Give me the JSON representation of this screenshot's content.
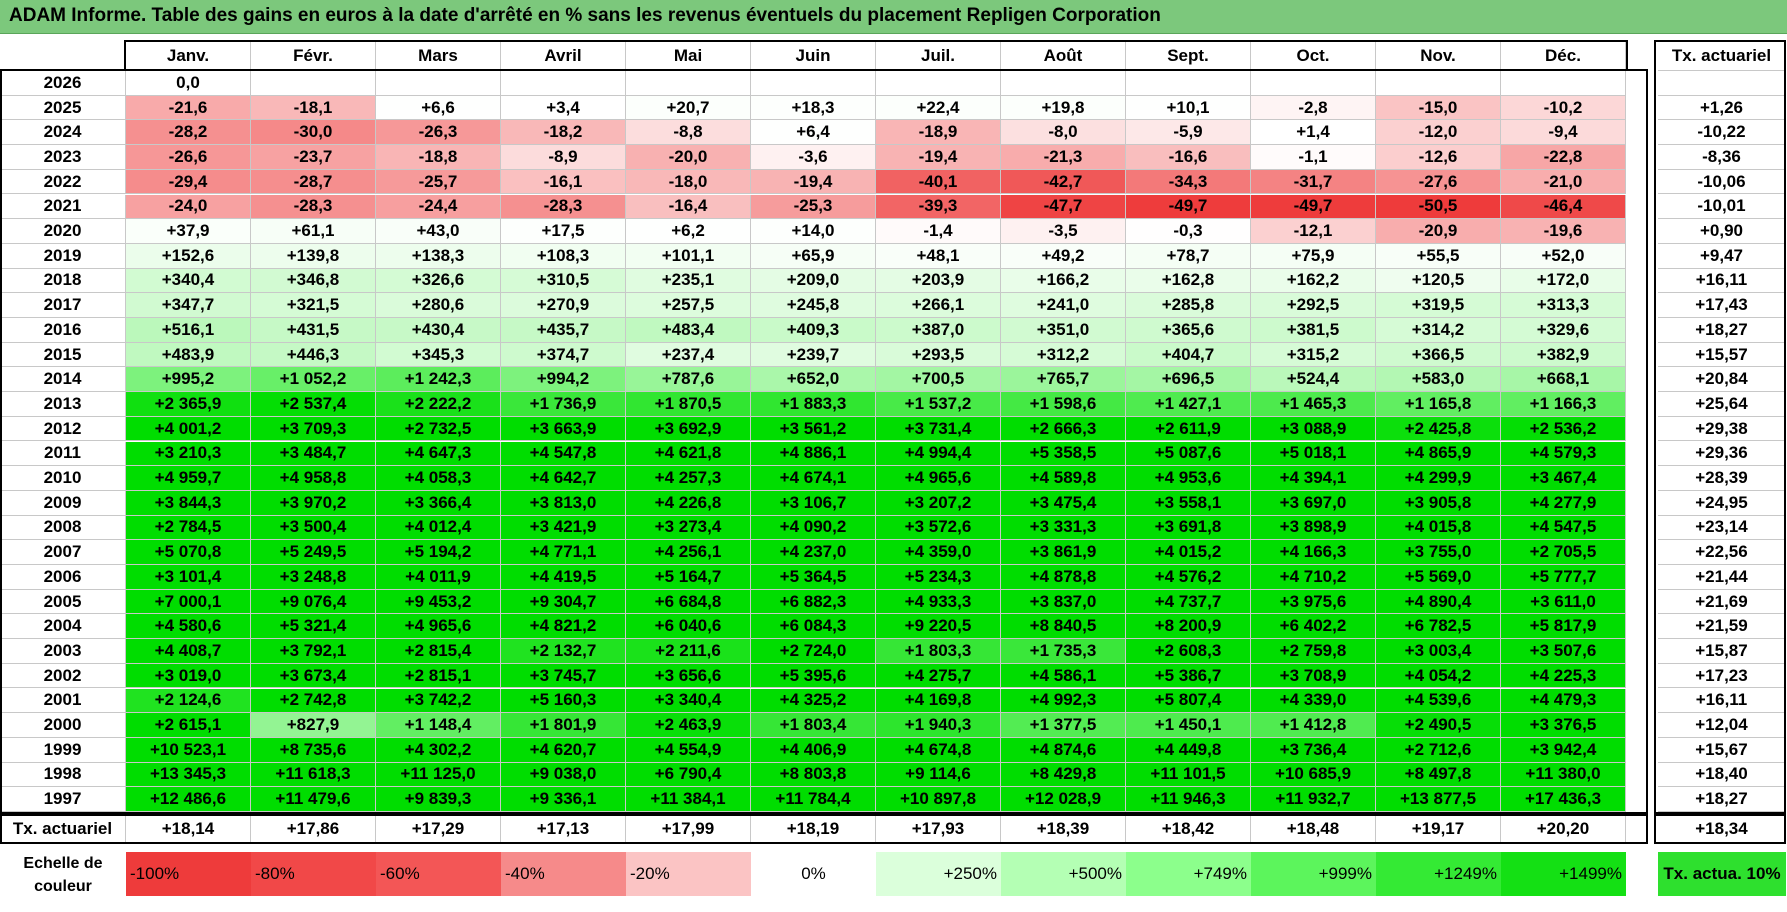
{
  "title": "ADAM Informe. Table des gains en euros à la date d'arrêté en % sans les revenus éventuels du placement Repligen Corporation",
  "chart_data": {
    "type": "heatmap",
    "months": [
      "Janv.",
      "Févr.",
      "Mars",
      "Avril",
      "Mai",
      "Juin",
      "Juil.",
      "Août",
      "Sept.",
      "Oct.",
      "Nov.",
      "Déc."
    ],
    "rate_header": "Tx. actuariel",
    "rows": [
      {
        "year": "2026",
        "values": [
          "0,0",
          "",
          "",
          "",
          "",
          "",
          "",
          "",
          "",
          "",
          "",
          ""
        ],
        "rate": ""
      },
      {
        "year": "2025",
        "values": [
          "-21,6",
          "-18,1",
          "+6,6",
          "+3,4",
          "+20,7",
          "+18,3",
          "+22,4",
          "+19,8",
          "+10,1",
          "-2,8",
          "-15,0",
          "-10,2"
        ],
        "rate": "+1,26"
      },
      {
        "year": "2024",
        "values": [
          "-28,2",
          "-30,0",
          "-26,3",
          "-18,2",
          "-8,8",
          "+6,4",
          "-18,9",
          "-8,0",
          "-5,9",
          "+1,4",
          "-12,0",
          "-9,4"
        ],
        "rate": "-10,22"
      },
      {
        "year": "2023",
        "values": [
          "-26,6",
          "-23,7",
          "-18,8",
          "-8,9",
          "-20,0",
          "-3,6",
          "-19,4",
          "-21,3",
          "-16,6",
          "-1,1",
          "-12,6",
          "-22,8"
        ],
        "rate": "-8,36"
      },
      {
        "year": "2022",
        "values": [
          "-29,4",
          "-28,7",
          "-25,7",
          "-16,1",
          "-18,0",
          "-19,4",
          "-40,1",
          "-42,7",
          "-34,3",
          "-31,7",
          "-27,6",
          "-21,0"
        ],
        "rate": "-10,06"
      },
      {
        "year": "2021",
        "values": [
          "-24,0",
          "-28,3",
          "-24,4",
          "-28,3",
          "-16,4",
          "-25,3",
          "-39,3",
          "-47,7",
          "-49,7",
          "-49,7",
          "-50,5",
          "-46,4"
        ],
        "rate": "-10,01"
      },
      {
        "year": "2020",
        "values": [
          "+37,9",
          "+61,1",
          "+43,0",
          "+17,5",
          "+6,2",
          "+14,0",
          "-1,4",
          "-3,5",
          "-0,3",
          "-12,1",
          "-20,9",
          "-19,6"
        ],
        "rate": "+0,90"
      },
      {
        "year": "2019",
        "values": [
          "+152,6",
          "+139,8",
          "+138,3",
          "+108,3",
          "+101,1",
          "+65,9",
          "+48,1",
          "+49,2",
          "+78,7",
          "+75,9",
          "+55,5",
          "+52,0"
        ],
        "rate": "+9,47"
      },
      {
        "year": "2018",
        "values": [
          "+340,4",
          "+346,8",
          "+326,6",
          "+310,5",
          "+235,1",
          "+209,0",
          "+203,9",
          "+166,2",
          "+162,8",
          "+162,2",
          "+120,5",
          "+172,0"
        ],
        "rate": "+16,11"
      },
      {
        "year": "2017",
        "values": [
          "+347,7",
          "+321,5",
          "+280,6",
          "+270,9",
          "+257,5",
          "+245,8",
          "+266,1",
          "+241,0",
          "+285,8",
          "+292,5",
          "+319,5",
          "+313,3"
        ],
        "rate": "+17,43"
      },
      {
        "year": "2016",
        "values": [
          "+516,1",
          "+431,5",
          "+430,4",
          "+435,7",
          "+483,4",
          "+409,3",
          "+387,0",
          "+351,0",
          "+365,6",
          "+381,5",
          "+314,2",
          "+329,6"
        ],
        "rate": "+18,27"
      },
      {
        "year": "2015",
        "values": [
          "+483,9",
          "+446,3",
          "+345,3",
          "+374,7",
          "+237,4",
          "+239,7",
          "+293,5",
          "+312,2",
          "+404,7",
          "+315,2",
          "+366,5",
          "+382,9"
        ],
        "rate": "+15,57"
      },
      {
        "year": "2014",
        "values": [
          "+995,2",
          "+1 052,2",
          "+1 242,3",
          "+994,2",
          "+787,6",
          "+652,0",
          "+700,5",
          "+765,7",
          "+696,5",
          "+524,4",
          "+583,0",
          "+668,1"
        ],
        "rate": "+20,84"
      },
      {
        "year": "2013",
        "values": [
          "+2 365,9",
          "+2 537,4",
          "+2 222,2",
          "+1 736,9",
          "+1 870,5",
          "+1 883,3",
          "+1 537,2",
          "+1 598,6",
          "+1 427,1",
          "+1 465,3",
          "+1 165,8",
          "+1 166,3"
        ],
        "rate": "+25,64"
      },
      {
        "year": "2012",
        "values": [
          "+4 001,2",
          "+3 709,3",
          "+2 732,5",
          "+3 663,9",
          "+3 692,9",
          "+3 561,2",
          "+3 731,4",
          "+2 666,3",
          "+2 611,9",
          "+3 088,9",
          "+2 425,8",
          "+2 536,2"
        ],
        "rate": "+29,38"
      },
      {
        "year": "2011",
        "values": [
          "+3 210,3",
          "+3 484,7",
          "+4 647,3",
          "+4 547,8",
          "+4 621,8",
          "+4 886,1",
          "+4 994,4",
          "+5 358,5",
          "+5 087,6",
          "+5 018,1",
          "+4 865,9",
          "+4 579,3"
        ],
        "rate": "+29,36"
      },
      {
        "year": "2010",
        "values": [
          "+4 959,7",
          "+4 958,8",
          "+4 058,3",
          "+4 642,7",
          "+4 257,3",
          "+4 674,1",
          "+4 965,6",
          "+4 589,8",
          "+4 953,6",
          "+4 394,1",
          "+4 299,9",
          "+3 467,4"
        ],
        "rate": "+28,39"
      },
      {
        "year": "2009",
        "values": [
          "+3 844,3",
          "+3 970,2",
          "+3 366,4",
          "+3 813,0",
          "+4 226,8",
          "+3 106,7",
          "+3 207,2",
          "+3 475,4",
          "+3 558,1",
          "+3 697,0",
          "+3 905,8",
          "+4 277,9"
        ],
        "rate": "+24,95"
      },
      {
        "year": "2008",
        "values": [
          "+2 784,5",
          "+3 500,4",
          "+4 012,4",
          "+3 421,9",
          "+3 273,4",
          "+4 090,2",
          "+3 572,6",
          "+3 331,3",
          "+3 691,8",
          "+3 898,9",
          "+4 015,8",
          "+4 547,5"
        ],
        "rate": "+23,14"
      },
      {
        "year": "2007",
        "values": [
          "+5 070,8",
          "+5 249,5",
          "+5 194,2",
          "+4 771,1",
          "+4 256,1",
          "+4 237,0",
          "+4 359,0",
          "+3 861,9",
          "+4 015,2",
          "+4 166,3",
          "+3 755,0",
          "+2 705,5"
        ],
        "rate": "+22,56"
      },
      {
        "year": "2006",
        "values": [
          "+3 101,4",
          "+3 248,8",
          "+4 011,9",
          "+4 419,5",
          "+5 164,7",
          "+5 364,5",
          "+5 234,3",
          "+4 878,8",
          "+4 576,2",
          "+4 710,2",
          "+5 569,0",
          "+5 777,7"
        ],
        "rate": "+21,44"
      },
      {
        "year": "2005",
        "values": [
          "+7 000,1",
          "+9 076,4",
          "+9 453,2",
          "+9 304,7",
          "+6 684,8",
          "+6 882,3",
          "+4 933,3",
          "+3 837,0",
          "+4 737,7",
          "+3 975,6",
          "+4 890,4",
          "+3 611,0"
        ],
        "rate": "+21,69"
      },
      {
        "year": "2004",
        "values": [
          "+4 580,6",
          "+5 321,4",
          "+4 965,6",
          "+4 821,2",
          "+6 040,6",
          "+6 084,3",
          "+9 220,5",
          "+8 840,5",
          "+8 200,9",
          "+6 402,2",
          "+6 782,5",
          "+5 817,9"
        ],
        "rate": "+21,59"
      },
      {
        "year": "2003",
        "values": [
          "+4 408,7",
          "+3 792,1",
          "+2 815,4",
          "+2 132,7",
          "+2 211,6",
          "+2 724,0",
          "+1 803,3",
          "+1 735,3",
          "+2 608,3",
          "+2 759,8",
          "+3 003,4",
          "+3 507,6"
        ],
        "rate": "+15,87"
      },
      {
        "year": "2002",
        "values": [
          "+3 019,0",
          "+3 673,4",
          "+2 815,1",
          "+3 745,7",
          "+3 656,6",
          "+5 395,6",
          "+4 275,7",
          "+4 586,1",
          "+5 386,7",
          "+3 708,9",
          "+4 054,2",
          "+4 225,3"
        ],
        "rate": "+17,23"
      },
      {
        "year": "2001",
        "values": [
          "+2 124,6",
          "+2 742,8",
          "+3 742,2",
          "+5 160,3",
          "+3 340,4",
          "+4 325,2",
          "+4 169,8",
          "+4 992,3",
          "+5 807,4",
          "+4 339,0",
          "+4 539,6",
          "+4 479,3"
        ],
        "rate": "+16,11"
      },
      {
        "year": "2000",
        "values": [
          "+2 615,1",
          "+827,9",
          "+1 148,4",
          "+1 801,9",
          "+2 463,9",
          "+1 803,4",
          "+1 940,3",
          "+1 377,5",
          "+1 450,1",
          "+1 412,8",
          "+2 490,5",
          "+3 376,5"
        ],
        "rate": "+12,04"
      },
      {
        "year": "1999",
        "values": [
          "+10 523,1",
          "+8 735,6",
          "+4 302,2",
          "+4 620,7",
          "+4 554,9",
          "+4 406,9",
          "+4 674,8",
          "+4 874,6",
          "+4 449,8",
          "+3 736,4",
          "+2 712,6",
          "+3 942,4"
        ],
        "rate": "+15,67"
      },
      {
        "year": "1998",
        "values": [
          "+13 345,3",
          "+11 618,3",
          "+11 125,0",
          "+9 038,0",
          "+6 790,4",
          "+8 803,8",
          "+9 114,6",
          "+8 429,8",
          "+11 101,5",
          "+10 685,9",
          "+8 497,8",
          "+11 380,0"
        ],
        "rate": "+18,40"
      },
      {
        "year": "1997",
        "values": [
          "+12 486,6",
          "+11 479,6",
          "+9 839,3",
          "+9 336,1",
          "+11 384,1",
          "+11 784,4",
          "+10 897,8",
          "+12 028,9",
          "+11 946,3",
          "+11 932,7",
          "+13 877,5",
          "+17 436,3"
        ],
        "rate": "+18,27"
      }
    ],
    "footer": {
      "label": "Tx. actuariel",
      "values": [
        "+18,14",
        "+17,86",
        "+17,29",
        "+17,13",
        "+17,99",
        "+18,19",
        "+17,93",
        "+18,39",
        "+18,42",
        "+18,48",
        "+19,17",
        "+20,20"
      ],
      "rate": "+18,34"
    },
    "color_scale": {
      "label": "Echelle de couleur",
      "steps": [
        {
          "label": "-100%",
          "color": "#ee3b3b"
        },
        {
          "label": "-80%",
          "color": "#f14848"
        },
        {
          "label": "-60%",
          "color": "#f35656"
        },
        {
          "label": "-40%",
          "color": "#f68a8a"
        },
        {
          "label": "-20%",
          "color": "#fbc4c4"
        },
        {
          "label": "0%",
          "color": "#ffffff"
        },
        {
          "label": "+250%",
          "color": "#dbffdb"
        },
        {
          "label": "+500%",
          "color": "#b4ffb4"
        },
        {
          "label": "+749%",
          "color": "#8cff8c"
        },
        {
          "label": "+999%",
          "color": "#5cf55c"
        },
        {
          "label": "+1249%",
          "color": "#34ea34"
        },
        {
          "label": "+1499%",
          "color": "#14e014"
        }
      ],
      "rate_label": "Tx. actua. 10%",
      "rate_color": "#2ee02e"
    },
    "colors": {
      "title_bar": "#7cc87c",
      "max_green": "#00dd00"
    }
  }
}
